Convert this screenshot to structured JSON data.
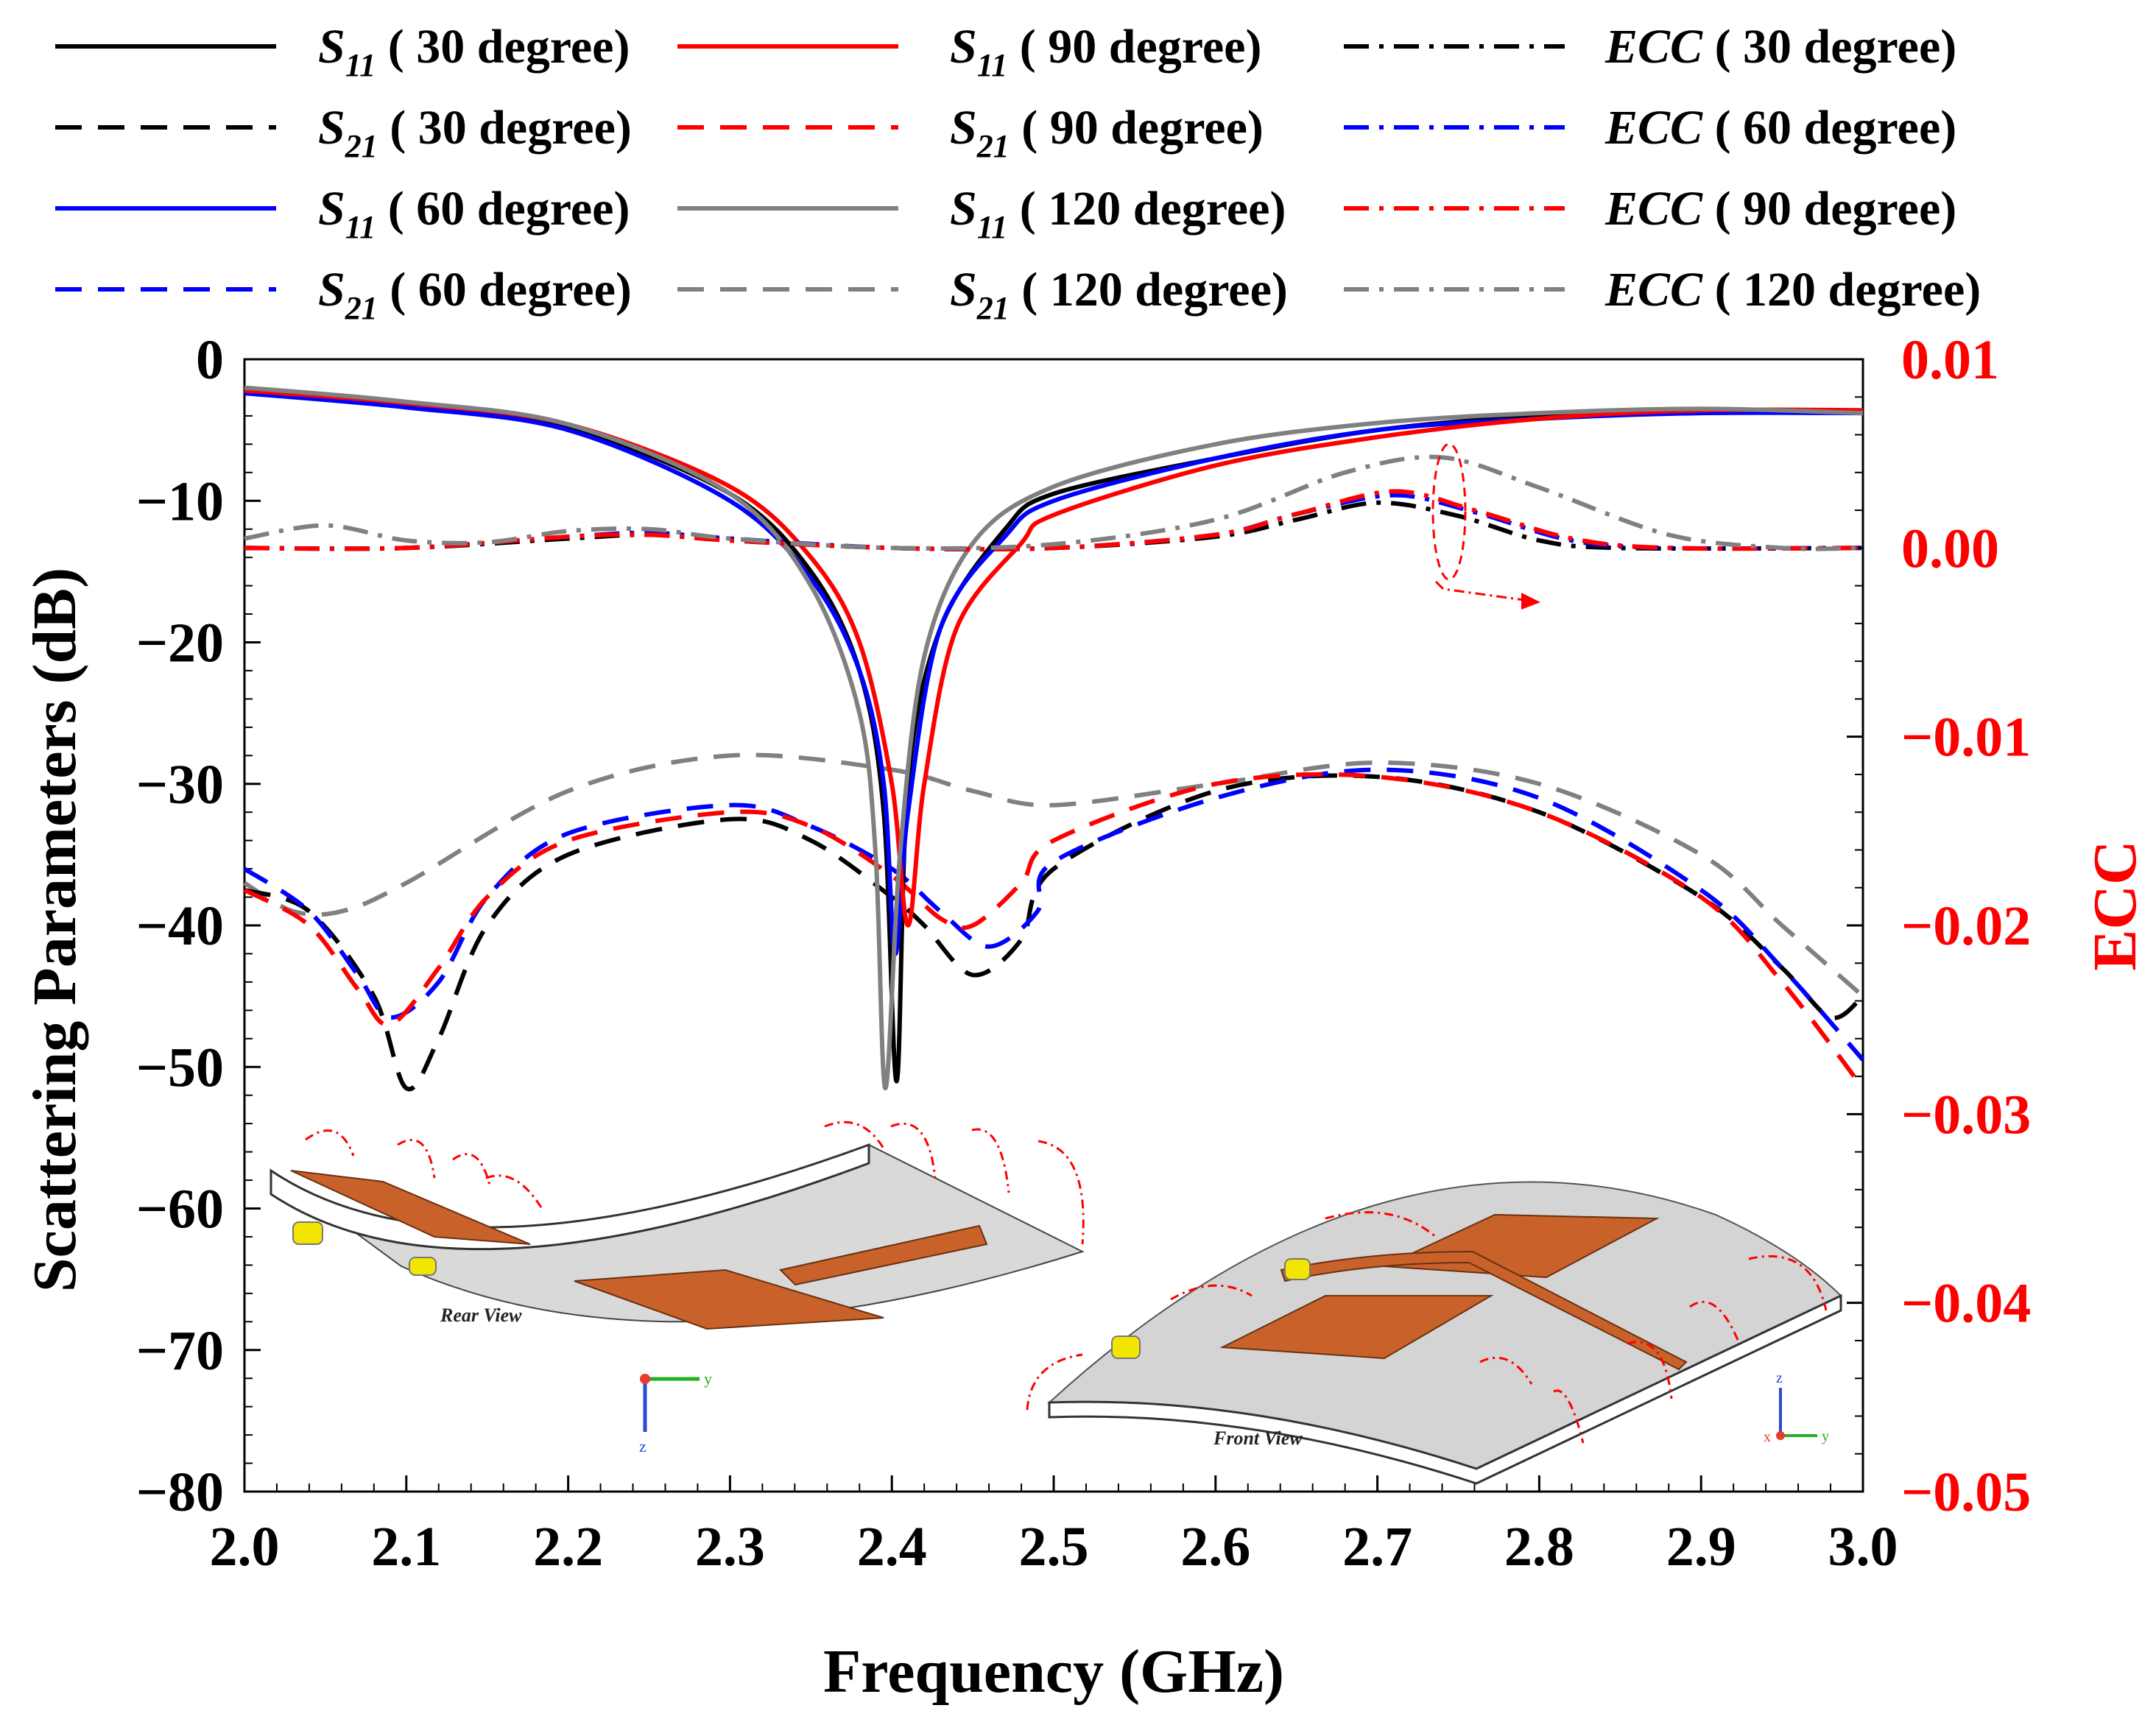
{
  "chart_data": {
    "type": "line",
    "xlabel": "Frequency (GHz)",
    "ylabel": "Scattering Parameters (dB)",
    "y2label": "ECC",
    "xlim": [
      2.0,
      3.0
    ],
    "ylim": [
      -80,
      0
    ],
    "y2lim": [
      -0.05,
      0.01
    ],
    "x_ticks": [
      "2.0",
      "2.1",
      "2.2",
      "2.3",
      "2.4",
      "2.5",
      "2.6",
      "2.7",
      "2.8",
      "2.9",
      "3.0"
    ],
    "y_ticks": [
      "0",
      "−10",
      "−20",
      "−30",
      "−40",
      "−50",
      "−60",
      "−70",
      "−80"
    ],
    "y2_ticks": [
      "0.01",
      "0.00",
      "−0.01",
      "−0.02",
      "−0.03",
      "−0.04",
      "−0.05"
    ],
    "legend": [
      {
        "sym": "S",
        "sub": "11",
        "label": "( 30 degree)",
        "color": "#000000",
        "dash": "solid"
      },
      {
        "sym": "S",
        "sub": "21",
        "label": "( 30 degree)",
        "color": "#000000",
        "dash": "dash"
      },
      {
        "sym": "S",
        "sub": "11",
        "label": "( 60 degree)",
        "color": "#0000ff",
        "dash": "solid"
      },
      {
        "sym": "S",
        "sub": "21",
        "label": "( 60 degree)",
        "color": "#0000ff",
        "dash": "dash"
      },
      {
        "sym": "S",
        "sub": "11",
        "label": "( 90 degree)",
        "color": "#ff0000",
        "dash": "solid"
      },
      {
        "sym": "S",
        "sub": "21",
        "label": "( 90 degree)",
        "color": "#ff0000",
        "dash": "dash"
      },
      {
        "sym": "S",
        "sub": "11",
        "label": "( 120 degree)",
        "color": "#808080",
        "dash": "solid"
      },
      {
        "sym": "S",
        "sub": "21",
        "label": "( 120 degree)",
        "color": "#808080",
        "dash": "dash"
      },
      {
        "sym": "ECC",
        "sub": "",
        "label": "( 30 degree)",
        "color": "#000000",
        "dash": "dashdot"
      },
      {
        "sym": "ECC",
        "sub": "",
        "label": "( 60 degree)",
        "color": "#0000ff",
        "dash": "dashdot"
      },
      {
        "sym": "ECC",
        "sub": "",
        "label": "( 90 degree)",
        "color": "#ff0000",
        "dash": "dashdot"
      },
      {
        "sym": "ECC",
        "sub": "",
        "label": "( 120 degree)",
        "color": "#808080",
        "dash": "dashdot"
      }
    ],
    "series": [
      {
        "name": "S11 (30 degree)",
        "color": "#000000",
        "dash": "solid",
        "axis": "left",
        "points": [
          [
            2.0,
            -2.2
          ],
          [
            2.1,
            -3.2
          ],
          [
            2.2,
            -4.8
          ],
          [
            2.3,
            -9.5
          ],
          [
            2.35,
            -15
          ],
          [
            2.38,
            -22
          ],
          [
            2.395,
            -32
          ],
          [
            2.403,
            -51
          ],
          [
            2.41,
            -30
          ],
          [
            2.43,
            -19
          ],
          [
            2.47,
            -12
          ],
          [
            2.5,
            -9.5
          ],
          [
            2.6,
            -7
          ],
          [
            2.7,
            -5
          ],
          [
            2.8,
            -4
          ],
          [
            2.9,
            -3.6
          ],
          [
            3.0,
            -3.7
          ]
        ]
      },
      {
        "name": "S11 (60 degree)",
        "color": "#0000ff",
        "dash": "solid",
        "axis": "left",
        "points": [
          [
            2.0,
            -2.4
          ],
          [
            2.1,
            -3.4
          ],
          [
            2.2,
            -5
          ],
          [
            2.3,
            -10
          ],
          [
            2.35,
            -15.5
          ],
          [
            2.38,
            -22
          ],
          [
            2.395,
            -30
          ],
          [
            2.402,
            -42
          ],
          [
            2.41,
            -32
          ],
          [
            2.43,
            -19
          ],
          [
            2.47,
            -12.5
          ],
          [
            2.5,
            -10
          ],
          [
            2.6,
            -7
          ],
          [
            2.7,
            -5
          ],
          [
            2.8,
            -4.2
          ],
          [
            2.9,
            -3.8
          ],
          [
            3.0,
            -3.8
          ]
        ]
      },
      {
        "name": "S11 (90 degree)",
        "color": "#ff0000",
        "dash": "solid",
        "axis": "left",
        "points": [
          [
            2.0,
            -2.2
          ],
          [
            2.1,
            -3.1
          ],
          [
            2.2,
            -4.6
          ],
          [
            2.3,
            -9
          ],
          [
            2.35,
            -14
          ],
          [
            2.38,
            -20
          ],
          [
            2.4,
            -30
          ],
          [
            2.41,
            -40
          ],
          [
            2.42,
            -30
          ],
          [
            2.44,
            -19
          ],
          [
            2.48,
            -13
          ],
          [
            2.5,
            -11
          ],
          [
            2.6,
            -7.5
          ],
          [
            2.7,
            -5.5
          ],
          [
            2.8,
            -4.2
          ],
          [
            2.9,
            -3.6
          ],
          [
            3.0,
            -3.6
          ]
        ]
      },
      {
        "name": "S11 (120 degree)",
        "color": "#808080",
        "dash": "solid",
        "axis": "left",
        "points": [
          [
            2.0,
            -2.0
          ],
          [
            2.1,
            -3.0
          ],
          [
            2.2,
            -4.6
          ],
          [
            2.3,
            -9.5
          ],
          [
            2.35,
            -16
          ],
          [
            2.38,
            -25
          ],
          [
            2.39,
            -35
          ],
          [
            2.396,
            -51.5
          ],
          [
            2.405,
            -35
          ],
          [
            2.42,
            -21
          ],
          [
            2.45,
            -13
          ],
          [
            2.5,
            -9
          ],
          [
            2.6,
            -6
          ],
          [
            2.7,
            -4.5
          ],
          [
            2.8,
            -3.8
          ],
          [
            2.9,
            -3.5
          ],
          [
            3.0,
            -3.8
          ]
        ]
      },
      {
        "name": "S21 (30 degree)",
        "color": "#000000",
        "dash": "dash",
        "axis": "left",
        "points": [
          [
            2.0,
            -37.5
          ],
          [
            2.04,
            -39
          ],
          [
            2.08,
            -45
          ],
          [
            2.1,
            -51.5
          ],
          [
            2.12,
            -48
          ],
          [
            2.15,
            -40
          ],
          [
            2.2,
            -35
          ],
          [
            2.3,
            -32.5
          ],
          [
            2.35,
            -34
          ],
          [
            2.4,
            -38
          ],
          [
            2.42,
            -40
          ],
          [
            2.45,
            -43.5
          ],
          [
            2.48,
            -41
          ],
          [
            2.5,
            -36
          ],
          [
            2.6,
            -30.5
          ],
          [
            2.7,
            -29.5
          ],
          [
            2.8,
            -32
          ],
          [
            2.9,
            -38
          ],
          [
            2.95,
            -43
          ],
          [
            2.98,
            -46.5
          ],
          [
            3.0,
            -45
          ]
        ]
      },
      {
        "name": "S21 (60 degree)",
        "color": "#0000ff",
        "dash": "dash",
        "axis": "left",
        "points": [
          [
            2.0,
            -36
          ],
          [
            2.04,
            -39
          ],
          [
            2.07,
            -43.5
          ],
          [
            2.09,
            -46.5
          ],
          [
            2.12,
            -44
          ],
          [
            2.15,
            -38
          ],
          [
            2.2,
            -33.5
          ],
          [
            2.3,
            -31.5
          ],
          [
            2.35,
            -33
          ],
          [
            2.4,
            -36
          ],
          [
            2.43,
            -39
          ],
          [
            2.46,
            -41.5
          ],
          [
            2.49,
            -39
          ],
          [
            2.5,
            -35.5
          ],
          [
            2.6,
            -31
          ],
          [
            2.7,
            -29
          ],
          [
            2.8,
            -31
          ],
          [
            2.9,
            -37.5
          ],
          [
            2.95,
            -43
          ],
          [
            3.0,
            -49.5
          ]
        ]
      },
      {
        "name": "S21 (90 degree)",
        "color": "#ff0000",
        "dash": "dash",
        "axis": "left",
        "points": [
          [
            2.0,
            -37.5
          ],
          [
            2.04,
            -40
          ],
          [
            2.07,
            -44.5
          ],
          [
            2.09,
            -47
          ],
          [
            2.12,
            -43
          ],
          [
            2.15,
            -38
          ],
          [
            2.2,
            -34
          ],
          [
            2.3,
            -32
          ],
          [
            2.35,
            -33
          ],
          [
            2.4,
            -36.5
          ],
          [
            2.43,
            -39.5
          ],
          [
            2.45,
            -40
          ],
          [
            2.48,
            -37
          ],
          [
            2.5,
            -34
          ],
          [
            2.6,
            -30
          ],
          [
            2.7,
            -29.5
          ],
          [
            2.8,
            -32
          ],
          [
            2.9,
            -38
          ],
          [
            2.95,
            -44
          ],
          [
            3.0,
            -51.5
          ]
        ]
      },
      {
        "name": "S21 (120 degree)",
        "color": "#808080",
        "dash": "dash",
        "axis": "left",
        "points": [
          [
            2.0,
            -37
          ],
          [
            2.03,
            -39
          ],
          [
            2.06,
            -39
          ],
          [
            2.1,
            -37
          ],
          [
            2.2,
            -30.5
          ],
          [
            2.3,
            -28
          ],
          [
            2.4,
            -29
          ],
          [
            2.45,
            -30.5
          ],
          [
            2.5,
            -31.5
          ],
          [
            2.6,
            -30
          ],
          [
            2.7,
            -28.5
          ],
          [
            2.8,
            -30
          ],
          [
            2.9,
            -35
          ],
          [
            2.95,
            -40
          ],
          [
            3.0,
            -45
          ]
        ]
      },
      {
        "name": "ECC (30 degree)",
        "color": "#000000",
        "dash": "dashdot",
        "axis": "right",
        "points": [
          [
            2.0,
            0.0
          ],
          [
            2.1,
            0.0
          ],
          [
            2.2,
            0.0005
          ],
          [
            2.25,
            0.0007
          ],
          [
            2.3,
            0.0004
          ],
          [
            2.4,
            0.0
          ],
          [
            2.5,
            0.0
          ],
          [
            2.6,
            0.0006
          ],
          [
            2.65,
            0.0015
          ],
          [
            2.7,
            0.0024
          ],
          [
            2.75,
            0.0017
          ],
          [
            2.8,
            0.0004
          ],
          [
            2.85,
            0.0
          ],
          [
            3.0,
            0.0
          ]
        ]
      },
      {
        "name": "ECC (60 degree)",
        "color": "#0000ff",
        "dash": "dashdot",
        "axis": "right",
        "points": [
          [
            2.0,
            0.0
          ],
          [
            2.1,
            0.0
          ],
          [
            2.2,
            0.0006
          ],
          [
            2.25,
            0.0008
          ],
          [
            2.3,
            0.0005
          ],
          [
            2.4,
            0.0
          ],
          [
            2.5,
            0.0
          ],
          [
            2.6,
            0.0007
          ],
          [
            2.65,
            0.0018
          ],
          [
            2.71,
            0.0028
          ],
          [
            2.76,
            0.0019
          ],
          [
            2.82,
            0.0004
          ],
          [
            2.88,
            0.0
          ],
          [
            3.0,
            0.0
          ]
        ]
      },
      {
        "name": "ECC (90 degree)",
        "color": "#ff0000",
        "dash": "dashdot",
        "axis": "right",
        "points": [
          [
            2.0,
            0.0
          ],
          [
            2.1,
            0.0
          ],
          [
            2.2,
            0.0006
          ],
          [
            2.25,
            0.0007
          ],
          [
            2.3,
            0.0004
          ],
          [
            2.4,
            0.0
          ],
          [
            2.5,
            0.0
          ],
          [
            2.6,
            0.0007
          ],
          [
            2.65,
            0.0018
          ],
          [
            2.71,
            0.003
          ],
          [
            2.76,
            0.002
          ],
          [
            2.82,
            0.0005
          ],
          [
            2.88,
            0.0
          ],
          [
            3.0,
            0.0
          ]
        ]
      },
      {
        "name": "ECC (120 degree)",
        "color": "#808080",
        "dash": "dashdot",
        "axis": "right",
        "points": [
          [
            2.0,
            0.0005
          ],
          [
            2.05,
            0.0012
          ],
          [
            2.1,
            0.0004
          ],
          [
            2.15,
            0.0003
          ],
          [
            2.2,
            0.0009
          ],
          [
            2.25,
            0.001
          ],
          [
            2.3,
            0.0005
          ],
          [
            2.4,
            0.0
          ],
          [
            2.5,
            0.0002
          ],
          [
            2.6,
            0.0015
          ],
          [
            2.68,
            0.004
          ],
          [
            2.74,
            0.0048
          ],
          [
            2.8,
            0.0032
          ],
          [
            2.88,
            0.0007
          ],
          [
            2.95,
            0.0
          ],
          [
            3.0,
            0.0
          ]
        ]
      }
    ]
  },
  "insets": {
    "rear_label": "Rear View",
    "front_label": "Front View",
    "axis_y": "y",
    "axis_z": "z",
    "axis_x": "x"
  },
  "colors": {
    "copper": "#c8622a",
    "substrate": "#d9d9d9",
    "feed": "#f2e600",
    "ecc_axis": "#ff0000"
  }
}
